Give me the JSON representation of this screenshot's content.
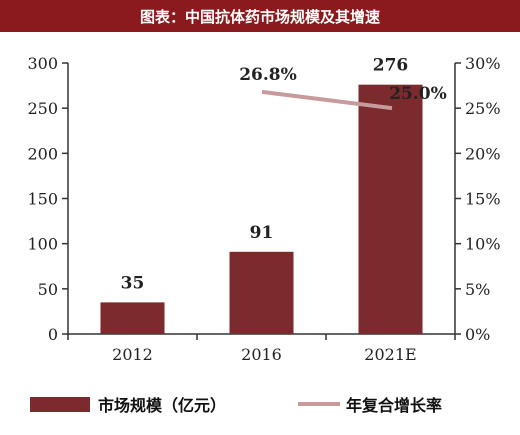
{
  "title": "图表：中国抗体药市场规模及其增速",
  "colors": {
    "title_bar": "#8b1a1f",
    "bar": "#7b2a2d",
    "line": "#c79a9c",
    "axis": "#333333"
  },
  "chart_data": {
    "type": "bar",
    "title": "图表：中国抗体药市场规模及其增速",
    "categories": [
      "2012",
      "2016",
      "2021E"
    ],
    "series": [
      {
        "name": "市场规模（亿元）",
        "type": "bar",
        "axis": "left",
        "values": [
          35,
          91,
          276
        ],
        "labels": [
          "35",
          "91",
          "276"
        ]
      },
      {
        "name": "年复合增长率",
        "type": "line",
        "axis": "right",
        "x": [
          "2016",
          "2021E"
        ],
        "values": [
          26.8,
          25.0
        ],
        "labels": [
          "26.8%",
          "25.0%"
        ]
      }
    ],
    "ylim": [
      0,
      300
    ],
    "y_ticks": [
      "0",
      "50",
      "100",
      "150",
      "200",
      "250",
      "300"
    ],
    "y2lim": [
      0,
      30
    ],
    "y2_ticks": [
      "0%",
      "5%",
      "10%",
      "15%",
      "20%",
      "25%",
      "30%"
    ],
    "legend": {
      "placement": "bottom",
      "entries": [
        "市场规模（亿元）",
        "年复合增长率"
      ]
    },
    "grid": false
  }
}
